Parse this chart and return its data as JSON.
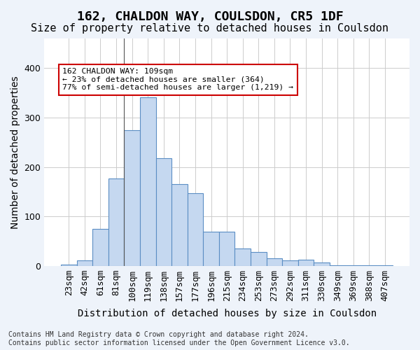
{
  "title": "162, CHALDON WAY, COULSDON, CR5 1DF",
  "subtitle": "Size of property relative to detached houses in Coulsdon",
  "xlabel": "Distribution of detached houses by size in Coulsdon",
  "ylabel": "Number of detached properties",
  "bar_labels": [
    "23sqm",
    "42sqm",
    "61sqm",
    "81sqm",
    "100sqm",
    "119sqm",
    "138sqm",
    "157sqm",
    "177sqm",
    "196sqm",
    "215sqm",
    "234sqm",
    "253sqm",
    "273sqm",
    "292sqm",
    "311sqm",
    "330sqm",
    "349sqm",
    "369sqm",
    "388sqm",
    "407sqm"
  ],
  "bar_values": [
    3,
    12,
    75,
    177,
    275,
    341,
    218,
    166,
    147,
    69,
    69,
    35,
    29,
    16,
    11,
    13,
    7,
    1,
    1,
    1,
    1
  ],
  "bar_color": "#c5d8f0",
  "bar_edge_color": "#5b8ec4",
  "property_size": 109,
  "property_bin_index": 4,
  "annotation_text": "162 CHALDON WAY: 109sqm\n← 23% of detached houses are smaller (364)\n77% of semi-detached houses are larger (1,219) →",
  "annotation_box_color": "#ffffff",
  "annotation_box_edge_color": "#cc0000",
  "footnote": "Contains HM Land Registry data © Crown copyright and database right 2024.\nContains public sector information licensed under the Open Government Licence v3.0.",
  "bg_color": "#eef3fa",
  "plot_bg_color": "#ffffff",
  "grid_color": "#cccccc",
  "ylim": [
    0,
    460
  ],
  "title_fontsize": 13,
  "subtitle_fontsize": 11,
  "axis_label_fontsize": 10,
  "tick_fontsize": 9
}
